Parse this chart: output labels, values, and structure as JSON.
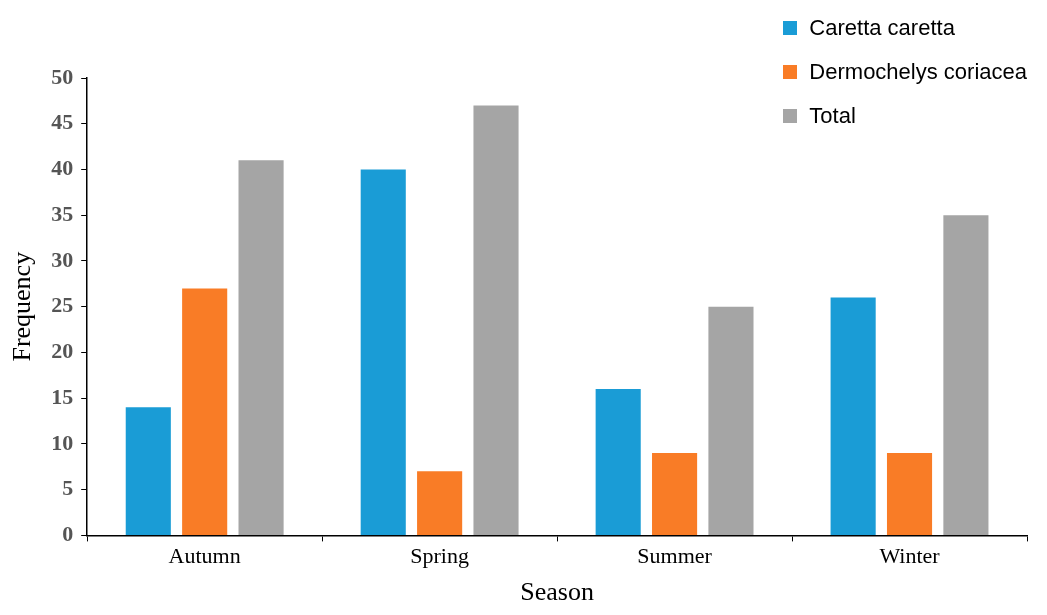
{
  "chart_data": {
    "type": "bar",
    "xlabel": "Season",
    "ylabel": "Frequency",
    "categories": [
      "Autumn",
      "Spring",
      "Summer",
      "Winter"
    ],
    "series": [
      {
        "name": "Caretta caretta",
        "color": "#1a9cd6",
        "values": [
          14,
          40,
          16,
          26
        ]
      },
      {
        "name": "Dermochelys coriacea",
        "color": "#f97c26",
        "values": [
          27,
          7,
          9,
          9
        ]
      },
      {
        "name": "Total",
        "color": "#a5a5a5",
        "values": [
          41,
          47,
          25,
          35
        ]
      }
    ],
    "ylim": [
      0,
      50
    ],
    "yticks": [
      0,
      5,
      10,
      15,
      20,
      25,
      30,
      35,
      40,
      45,
      50
    ],
    "grid": false,
    "legend": "top right"
  }
}
